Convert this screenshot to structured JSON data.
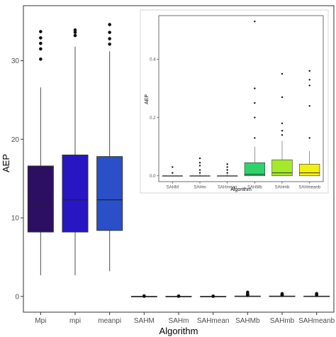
{
  "chart_data": [
    {
      "type": "box",
      "xlabel": "Algorithm",
      "ylabel": "AEP",
      "ylim": [
        -2,
        37
      ],
      "yticks": [
        0,
        10,
        20,
        30
      ],
      "grid": false,
      "categories": [
        "Mpi",
        "mpi",
        "meanpi",
        "SAHM",
        "SAHm",
        "SAHmean",
        "SAHMb",
        "SAHmb",
        "SAHmeanb"
      ],
      "colors": [
        "#2c0f63",
        "#2716c2",
        "#2b4fc8",
        "#ffffff",
        "#ffffff",
        "#ffffff",
        "#ffffff",
        "#ffffff",
        "#ffffff"
      ],
      "boxes": [
        {
          "name": "Mpi",
          "whisker_low": 2.7,
          "q1": 8.2,
          "median": 11.8,
          "q3": 16.6,
          "whisker_high": 26.6,
          "outliers": [
            30.2,
            31.5,
            32.2,
            32.9,
            33.7
          ]
        },
        {
          "name": "mpi",
          "whisker_low": 2.7,
          "q1": 8.2,
          "median": 12.3,
          "q3": 18.0,
          "whisker_high": 31.8,
          "outliers": [
            33.2,
            33.6,
            33.9
          ]
        },
        {
          "name": "meanpi",
          "whisker_low": 3.2,
          "q1": 8.4,
          "median": 12.3,
          "q3": 17.8,
          "whisker_high": 31.2,
          "outliers": [
            32.1,
            32.8,
            33.6,
            34.6
          ]
        },
        {
          "name": "SAHM",
          "whisker_low": 0.0,
          "q1": 0.0,
          "median": 0.0,
          "q3": 0.0,
          "whisker_high": 0.0,
          "outliers": [
            0.03,
            0.05,
            0.07
          ]
        },
        {
          "name": "SAHm",
          "whisker_low": 0.0,
          "q1": 0.0,
          "median": 0.0,
          "q3": 0.0,
          "whisker_high": 0.01,
          "outliers": [
            0.03,
            0.05
          ]
        },
        {
          "name": "SAHmean",
          "whisker_low": 0.0,
          "q1": 0.0,
          "median": 0.0,
          "q3": 0.0,
          "whisker_high": 0.01,
          "outliers": [
            0.02,
            0.04
          ]
        },
        {
          "name": "SAHMb",
          "whisker_low": 0.0,
          "q1": 0.0,
          "median": 0.01,
          "q3": 0.05,
          "whisker_high": 0.1,
          "outliers": [
            0.13,
            0.2,
            0.25,
            0.3,
            0.53
          ]
        },
        {
          "name": "SAHmb",
          "whisker_low": 0.0,
          "q1": 0.0,
          "median": 0.01,
          "q3": 0.05,
          "whisker_high": 0.12,
          "outliers": [
            0.14,
            0.16,
            0.18,
            0.27,
            0.35
          ]
        },
        {
          "name": "SAHmeanb",
          "whisker_low": 0.0,
          "q1": 0.0,
          "median": 0.01,
          "q3": 0.04,
          "whisker_high": 0.09,
          "outliers": [
            0.13,
            0.24,
            0.31,
            0.33,
            0.36
          ]
        }
      ]
    },
    {
      "type": "box",
      "xlabel": "Algorithm",
      "ylabel": "AEP",
      "ylim": [
        -0.02,
        0.55
      ],
      "yticks": [
        0.0,
        0.2,
        0.4
      ],
      "ytick_labels": [
        "0.0",
        "0.2",
        "0.4"
      ],
      "grid": false,
      "categories": [
        "SAHM",
        "SAHm",
        "SAHmean",
        "SAHMb",
        "SAHmb",
        "SAHmeanb"
      ],
      "colors": [
        "#ffffff",
        "#ffffff",
        "#ffffff",
        "#2fd36b",
        "#a6e82a",
        "#f2ef12"
      ],
      "boxes": [
        {
          "name": "SAHM",
          "whisker_low": 0.0,
          "q1": 0.0,
          "median": 0.0,
          "q3": 0.0,
          "whisker_high": 0.0,
          "outliers": [
            0.01,
            0.03
          ]
        },
        {
          "name": "SAHm",
          "whisker_low": 0.0,
          "q1": 0.0,
          "median": 0.0,
          "q3": 0.0,
          "whisker_high": 0.005,
          "outliers": [
            0.01,
            0.02,
            0.035,
            0.045,
            0.06
          ]
        },
        {
          "name": "SAHmean",
          "whisker_low": 0.0,
          "q1": 0.0,
          "median": 0.0,
          "q3": 0.0,
          "whisker_high": 0.005,
          "outliers": [
            0.01,
            0.02,
            0.03,
            0.04
          ]
        },
        {
          "name": "SAHMb",
          "whisker_low": 0.0,
          "q1": 0.0,
          "median": 0.005,
          "q3": 0.045,
          "whisker_high": 0.1,
          "outliers": [
            0.13,
            0.2,
            0.25,
            0.3,
            0.53
          ]
        },
        {
          "name": "SAHmb",
          "whisker_low": 0.0,
          "q1": 0.0,
          "median": 0.01,
          "q3": 0.055,
          "whisker_high": 0.12,
          "outliers": [
            0.14,
            0.155,
            0.18,
            0.27,
            0.35
          ]
        },
        {
          "name": "SAHmeanb",
          "whisker_low": 0.0,
          "q1": 0.0,
          "median": 0.01,
          "q3": 0.04,
          "whisker_high": 0.085,
          "outliers": [
            0.13,
            0.24,
            0.31,
            0.33,
            0.36
          ]
        }
      ]
    }
  ]
}
